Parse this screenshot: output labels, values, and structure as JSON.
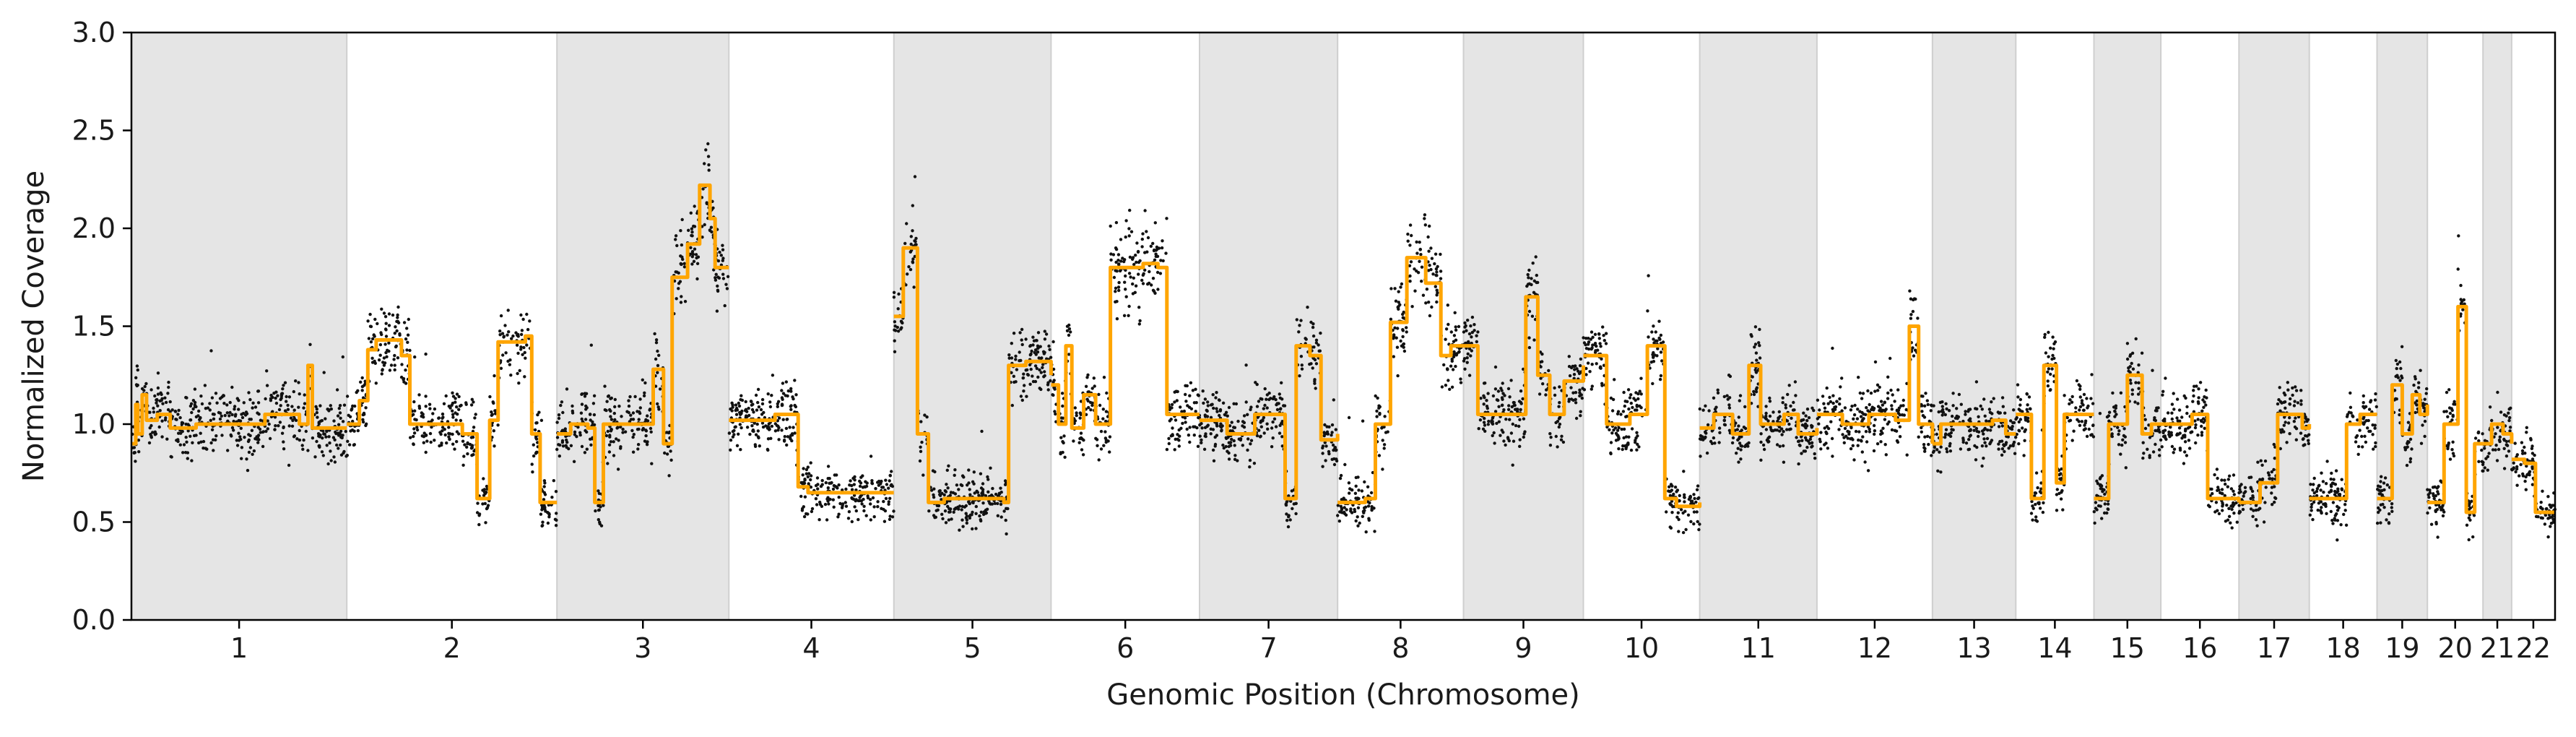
{
  "chart_data": {
    "type": "scatter",
    "title": "",
    "xlabel": "Genomic Position (Chromosome)",
    "ylabel": "Normalized Coverage",
    "ylim": [
      0,
      3
    ],
    "yticks": [
      "0.0",
      "0.5",
      "1.0",
      "1.5",
      "2.0",
      "2.5",
      "3.0"
    ],
    "grid": false,
    "legend": "none",
    "colors": {
      "points": "#111111",
      "segments": "#ffa500",
      "bands": "#e5e5e5",
      "axes": "#000000"
    },
    "chromosomes": [
      {
        "label": "1",
        "length": 248,
        "shaded": true
      },
      {
        "label": "2",
        "length": 242,
        "shaded": false
      },
      {
        "label": "3",
        "length": 198,
        "shaded": true
      },
      {
        "label": "4",
        "length": 190,
        "shaded": false
      },
      {
        "label": "5",
        "length": 181,
        "shaded": true
      },
      {
        "label": "6",
        "length": 171,
        "shaded": false
      },
      {
        "label": "7",
        "length": 159,
        "shaded": true
      },
      {
        "label": "8",
        "length": 145,
        "shaded": false
      },
      {
        "label": "9",
        "length": 138,
        "shaded": true
      },
      {
        "label": "10",
        "length": 134,
        "shaded": false
      },
      {
        "label": "11",
        "length": 135,
        "shaded": true
      },
      {
        "label": "12",
        "length": 133,
        "shaded": false
      },
      {
        "label": "13",
        "length": 96,
        "shaded": true
      },
      {
        "label": "14",
        "length": 90,
        "shaded": false
      },
      {
        "label": "15",
        "length": 77,
        "shaded": true
      },
      {
        "label": "16",
        "length": 90,
        "shaded": false
      },
      {
        "label": "17",
        "length": 81,
        "shaded": true
      },
      {
        "label": "18",
        "length": 78,
        "shaded": false
      },
      {
        "label": "19",
        "length": 58,
        "shaded": true
      },
      {
        "label": "20",
        "length": 64,
        "shaded": false
      },
      {
        "label": "21",
        "length": 33,
        "shaded": true
      },
      {
        "label": "22",
        "length": 50,
        "shaded": false
      }
    ],
    "segments": [
      [
        0.0,
        0.9
      ],
      [
        0.02,
        1.1
      ],
      [
        0.03,
        0.95
      ],
      [
        0.05,
        1.15
      ],
      [
        0.07,
        1.02
      ],
      [
        0.12,
        1.05
      ],
      [
        0.18,
        0.98
      ],
      [
        0.3,
        1.0
      ],
      [
        0.58,
        1.0
      ],
      [
        0.62,
        1.05
      ],
      [
        0.78,
        1.0
      ],
      [
        0.82,
        1.3
      ],
      [
        0.84,
        0.98
      ],
      [
        1.0,
        0.98
      ],
      [
        0.0,
        1.0
      ],
      [
        0.06,
        1.12
      ],
      [
        0.1,
        1.38
      ],
      [
        0.14,
        1.43
      ],
      [
        0.26,
        1.35
      ],
      [
        0.3,
        1.0
      ],
      [
        0.55,
        0.95
      ],
      [
        0.62,
        0.62
      ],
      [
        0.68,
        1.02
      ],
      [
        0.72,
        1.42
      ],
      [
        0.85,
        1.45
      ],
      [
        0.88,
        0.95
      ],
      [
        0.92,
        0.6
      ],
      [
        1.0,
        0.6
      ],
      [
        0.0,
        0.95
      ],
      [
        0.08,
        1.0
      ],
      [
        0.18,
        0.98
      ],
      [
        0.22,
        0.6
      ],
      [
        0.27,
        1.0
      ],
      [
        0.5,
        1.0
      ],
      [
        0.56,
        1.28
      ],
      [
        0.62,
        0.9
      ],
      [
        0.67,
        1.75
      ],
      [
        0.76,
        1.92
      ],
      [
        0.83,
        2.22
      ],
      [
        0.89,
        2.05
      ],
      [
        0.92,
        1.8
      ],
      [
        1.0,
        1.8
      ],
      [
        0.0,
        1.02
      ],
      [
        0.28,
        1.05
      ],
      [
        0.42,
        0.68
      ],
      [
        0.48,
        0.65
      ],
      [
        1.0,
        0.65
      ],
      [
        0.0,
        1.55
      ],
      [
        0.06,
        1.9
      ],
      [
        0.12,
        1.9
      ],
      [
        0.15,
        0.95
      ],
      [
        0.22,
        0.6
      ],
      [
        0.32,
        0.62
      ],
      [
        0.7,
        0.6
      ],
      [
        0.73,
        1.3
      ],
      [
        0.84,
        1.32
      ],
      [
        1.0,
        1.25
      ],
      [
        0.0,
        1.2
      ],
      [
        0.05,
        1.0
      ],
      [
        0.1,
        1.4
      ],
      [
        0.14,
        0.98
      ],
      [
        0.22,
        1.15
      ],
      [
        0.3,
        1.0
      ],
      [
        0.4,
        1.8
      ],
      [
        0.62,
        1.82
      ],
      [
        0.72,
        1.8
      ],
      [
        0.78,
        1.05
      ],
      [
        1.0,
        1.05
      ],
      [
        0.0,
        1.02
      ],
      [
        0.2,
        0.95
      ],
      [
        0.4,
        1.05
      ],
      [
        0.62,
        0.62
      ],
      [
        0.7,
        1.4
      ],
      [
        0.8,
        1.35
      ],
      [
        0.88,
        0.92
      ],
      [
        1.0,
        0.95
      ],
      [
        0.0,
        0.6
      ],
      [
        0.22,
        0.62
      ],
      [
        0.3,
        1.0
      ],
      [
        0.42,
        1.52
      ],
      [
        0.55,
        1.85
      ],
      [
        0.7,
        1.72
      ],
      [
        0.82,
        1.35
      ],
      [
        0.9,
        1.4
      ],
      [
        1.0,
        1.4
      ],
      [
        0.0,
        1.4
      ],
      [
        0.12,
        1.05
      ],
      [
        0.45,
        1.05
      ],
      [
        0.52,
        1.65
      ],
      [
        0.62,
        1.25
      ],
      [
        0.72,
        1.05
      ],
      [
        0.84,
        1.22
      ],
      [
        1.0,
        1.3
      ],
      [
        0.0,
        1.35
      ],
      [
        0.2,
        1.0
      ],
      [
        0.4,
        1.05
      ],
      [
        0.55,
        1.4
      ],
      [
        0.7,
        0.62
      ],
      [
        0.8,
        0.58
      ],
      [
        1.0,
        0.6
      ],
      [
        0.0,
        0.98
      ],
      [
        0.12,
        1.05
      ],
      [
        0.28,
        0.95
      ],
      [
        0.42,
        1.3
      ],
      [
        0.52,
        1.0
      ],
      [
        0.72,
        1.05
      ],
      [
        0.84,
        0.95
      ],
      [
        1.0,
        0.98
      ],
      [
        0.0,
        1.05
      ],
      [
        0.22,
        1.0
      ],
      [
        0.45,
        1.05
      ],
      [
        0.68,
        1.02
      ],
      [
        0.8,
        1.5
      ],
      [
        0.88,
        1.0
      ],
      [
        1.0,
        0.9
      ],
      [
        0.0,
        0.9
      ],
      [
        0.1,
        1.0
      ],
      [
        0.5,
        1.0
      ],
      [
        0.72,
        1.02
      ],
      [
        0.88,
        0.95
      ],
      [
        1.0,
        0.95
      ],
      [
        0.0,
        1.05
      ],
      [
        0.2,
        0.62
      ],
      [
        0.36,
        1.3
      ],
      [
        0.52,
        0.7
      ],
      [
        0.62,
        1.05
      ],
      [
        0.82,
        1.05
      ],
      [
        1.0,
        1.05
      ],
      [
        0.0,
        0.62
      ],
      [
        0.22,
        1.0
      ],
      [
        0.5,
        1.25
      ],
      [
        0.72,
        0.95
      ],
      [
        0.86,
        1.0
      ],
      [
        1.0,
        1.0
      ],
      [
        0.0,
        1.0
      ],
      [
        0.4,
        1.05
      ],
      [
        0.6,
        0.62
      ],
      [
        0.8,
        0.62
      ],
      [
        1.0,
        0.6
      ],
      [
        0.0,
        0.6
      ],
      [
        0.3,
        0.7
      ],
      [
        0.55,
        1.05
      ],
      [
        0.75,
        1.05
      ],
      [
        0.9,
        0.98
      ],
      [
        1.0,
        1.0
      ],
      [
        0.0,
        0.62
      ],
      [
        0.35,
        0.62
      ],
      [
        0.55,
        1.0
      ],
      [
        0.75,
        1.05
      ],
      [
        1.0,
        1.05
      ],
      [
        0.0,
        0.62
      ],
      [
        0.3,
        1.2
      ],
      [
        0.5,
        0.95
      ],
      [
        0.7,
        1.15
      ],
      [
        0.85,
        1.05
      ],
      [
        1.0,
        1.1
      ],
      [
        0.0,
        0.6
      ],
      [
        0.3,
        1.0
      ],
      [
        0.55,
        1.6
      ],
      [
        0.7,
        0.55
      ],
      [
        0.85,
        0.9
      ],
      [
        1.0,
        0.9
      ],
      [
        0.0,
        0.9
      ],
      [
        0.3,
        1.0
      ],
      [
        0.7,
        0.95
      ],
      [
        1.0,
        0.9
      ],
      [
        0.0,
        0.82
      ],
      [
        0.3,
        0.8
      ],
      [
        0.55,
        0.55
      ],
      [
        1.0,
        0.55
      ]
    ]
  }
}
